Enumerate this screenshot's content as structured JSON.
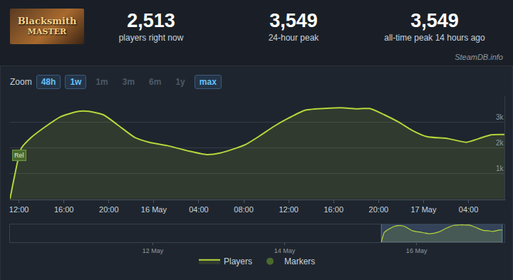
{
  "header": {
    "thumbnail_text": [
      "Blacksmith",
      "MASTER"
    ],
    "stats": [
      {
        "value": "2,513",
        "label": "players right now"
      },
      {
        "value": "3,549",
        "label": "24-hour peak"
      },
      {
        "value": "3,549",
        "label": "all-time peak 14 hours ago"
      }
    ],
    "watermark": "SteamDB.info"
  },
  "zoom": {
    "label": "Zoom",
    "buttons": [
      {
        "text": "48h",
        "active": true
      },
      {
        "text": "1w",
        "active": true
      },
      {
        "text": "1m",
        "active": false
      },
      {
        "text": "3m",
        "active": false
      },
      {
        "text": "6m",
        "active": false
      },
      {
        "text": "1y",
        "active": false
      },
      {
        "text": "max",
        "active": true
      }
    ]
  },
  "chart_data": {
    "type": "line",
    "x": [
      11.2,
      11.6,
      12.2,
      13.1,
      14.4,
      15.7,
      17.3,
      18.2,
      19.5,
      20.8,
      22.3,
      23.6,
      25.2,
      27.1,
      28.7,
      29.9,
      30.9,
      32.2,
      33.4,
      34.7,
      36.0,
      37.5,
      39.4,
      40.7,
      42.0,
      43.2,
      44.5,
      45.8,
      47.0,
      48.3,
      50.2,
      51.8,
      52.9,
      54.0,
      55.2
    ],
    "series": [
      {
        "name": "Players",
        "color": "#b5d63b",
        "values": [
          0,
          880,
          1970,
          2400,
          2830,
          3200,
          3410,
          3410,
          3280,
          2880,
          2400,
          2210,
          2080,
          1870,
          1730,
          1790,
          1920,
          2130,
          2450,
          2830,
          3150,
          3460,
          3530,
          3549,
          3510,
          3520,
          3280,
          2990,
          2670,
          2430,
          2350,
          2210,
          2350,
          2500,
          2513
        ]
      }
    ],
    "markers": {
      "name": "Markers",
      "color": "#4a6b2d",
      "points": [
        {
          "x": 12.0,
          "y": 1700,
          "label": "Rel"
        }
      ]
    },
    "xlim": [
      11.2,
      55.2
    ],
    "xticks": [
      {
        "value": 12,
        "label": "12:00"
      },
      {
        "value": 16,
        "label": "16:00"
      },
      {
        "value": 20,
        "label": "20:00"
      },
      {
        "value": 24,
        "label": "16 May"
      },
      {
        "value": 28,
        "label": "04:00"
      },
      {
        "value": 32,
        "label": "08:00"
      },
      {
        "value": 36,
        "label": "12:00"
      },
      {
        "value": 40,
        "label": "16:00"
      },
      {
        "value": 44,
        "label": "20:00"
      },
      {
        "value": 48,
        "label": "17 May"
      },
      {
        "value": 52,
        "label": "04:00"
      }
    ],
    "ylim": [
      0,
      4000
    ],
    "yticks": [
      {
        "value": 1000,
        "label": "1k"
      },
      {
        "value": 2000,
        "label": "2k"
      },
      {
        "value": 3000,
        "label": "3k"
      }
    ],
    "grid": true,
    "legend": "bottom"
  },
  "navigator": {
    "xlim": [
      -124,
      56
    ],
    "ylim": [
      0,
      3700
    ],
    "xticks": [
      {
        "value": -72,
        "label": "12 May"
      },
      {
        "value": -24,
        "label": "14 May"
      },
      {
        "value": 24,
        "label": "16 May"
      }
    ]
  }
}
